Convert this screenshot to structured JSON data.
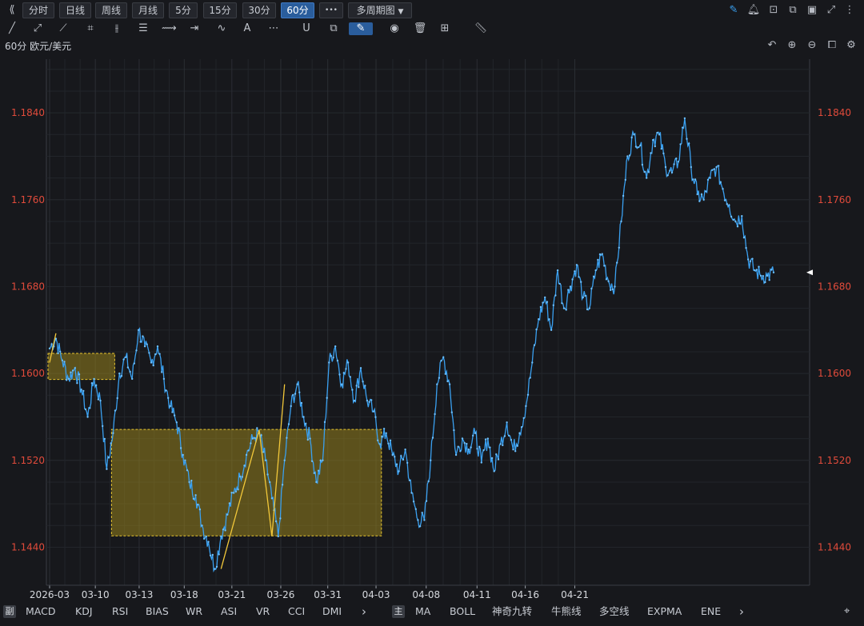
{
  "toolbar": {
    "collapse_icon": "double-chevron-left",
    "tabs": [
      {
        "label": "分时",
        "active": false
      },
      {
        "label": "日线",
        "active": false
      },
      {
        "label": "周线",
        "active": false
      },
      {
        "label": "月线",
        "active": false
      },
      {
        "label": "5分",
        "active": false
      },
      {
        "label": "15分",
        "active": false
      },
      {
        "label": "30分",
        "active": false
      },
      {
        "label": "60分",
        "active": true
      }
    ],
    "more_label": "•••",
    "multi_period_label": "多周期图",
    "right_icons": [
      "edit-icon",
      "bell-icon",
      "camera-icon",
      "copy-window-icon",
      "monitor-icon",
      "fullscreen-icon",
      "more-icon"
    ]
  },
  "drawing_tools": [
    "line",
    "ray",
    "polyline",
    "rectangle",
    "parallel",
    "horizontal-lines",
    "fan",
    "range",
    "abc",
    "text",
    "more",
    "magnet",
    "copy",
    "pen",
    "eye",
    "trash",
    "grid",
    "ruler"
  ],
  "symbol": {
    "period": "60分",
    "name": "欧元/美元"
  },
  "chart_controls": [
    "undo-icon",
    "zoom-in-icon",
    "zoom-out-icon",
    "layout-icon",
    "settings-icon"
  ],
  "chart_data": {
    "type": "line",
    "y_ticks": [
      "1.1840",
      "1.1760",
      "1.1680",
      "1.1600",
      "1.1520",
      "1.1440"
    ],
    "x_ticks": [
      "2026-03",
      "03-10",
      "03-13",
      "03-18",
      "03-21",
      "03-26",
      "03-31",
      "04-03",
      "04-08",
      "04-11",
      "04-16",
      "04-21"
    ],
    "ylim": [
      1.1405,
      1.1885
    ],
    "accent_color": "#3aa0f0",
    "axis_label_color": "#e14b3b",
    "series": [
      {
        "values": [
          1.1623,
          1.1632,
          1.1612,
          1.1595,
          1.1605,
          1.1585,
          1.156,
          1.1595,
          1.1575,
          1.1512,
          1.1545,
          1.16,
          1.1615,
          1.1595,
          1.164,
          1.1625,
          1.161,
          1.1625,
          1.1595,
          1.157,
          1.1555,
          1.1525,
          1.15,
          1.1488,
          1.146,
          1.1445,
          1.142,
          1.145,
          1.147,
          1.149,
          1.1505,
          1.1525,
          1.154,
          1.1545,
          1.152,
          1.1485,
          1.145,
          1.152,
          1.157,
          1.159,
          1.156,
          1.154,
          1.15,
          1.152,
          1.161,
          1.1625,
          1.159,
          1.161,
          1.1575,
          1.1605,
          1.1575,
          1.1565,
          1.1535,
          1.1545,
          1.1525,
          1.151,
          1.153,
          1.149,
          1.1465,
          1.1465,
          1.152,
          1.159,
          1.1615,
          1.159,
          1.1525,
          1.154,
          1.153,
          1.1545,
          1.1518,
          1.154,
          1.151,
          1.1535,
          1.1555,
          1.153,
          1.1545,
          1.157,
          1.161,
          1.165,
          1.167,
          1.164,
          1.1695,
          1.166,
          1.168,
          1.17,
          1.167,
          1.166,
          1.1695,
          1.171,
          1.1685,
          1.168,
          1.174,
          1.18,
          1.182,
          1.181,
          1.178,
          1.1815,
          1.182,
          1.179,
          1.1785,
          1.1795,
          1.1835,
          1.179,
          1.1765,
          1.176,
          1.178,
          1.179,
          1.177,
          1.1755,
          1.174,
          1.1745,
          1.1705,
          1.1695,
          1.169,
          1.169,
          1.1693
        ]
      }
    ],
    "annotations": [
      {
        "type": "zone",
        "from_index": 0,
        "to_index": 10,
        "y_top": 1.16185,
        "y_bottom": 1.15945
      },
      {
        "type": "zone",
        "from_index": 10,
        "to_index": 52,
        "y_top": 1.15485,
        "y_bottom": 1.14505
      },
      {
        "type": "trendline",
        "points": [
          [
            27,
            1.142
          ],
          [
            33,
            1.1548
          ],
          [
            35,
            1.145
          ],
          [
            37,
            1.159
          ]
        ]
      },
      {
        "type": "trendline",
        "points": [
          [
            0,
            1.161
          ],
          [
            1,
            1.1637
          ]
        ]
      },
      {
        "type": "price-marker",
        "y": 1.1693
      }
    ],
    "grid": true
  },
  "bottom_bar": {
    "sub_label": "副",
    "sub_indicators": [
      "MACD",
      "KDJ",
      "RSI",
      "BIAS",
      "WR",
      "ASI",
      "VR",
      "CCI",
      "DMI"
    ],
    "main_label": "主",
    "main_indicators": [
      "MA",
      "BOLL",
      "神奇九转",
      "牛熊线",
      "多空线",
      "EXPMA",
      "ENE"
    ],
    "arrow": "›",
    "location_icon": "location-pin-icon"
  }
}
